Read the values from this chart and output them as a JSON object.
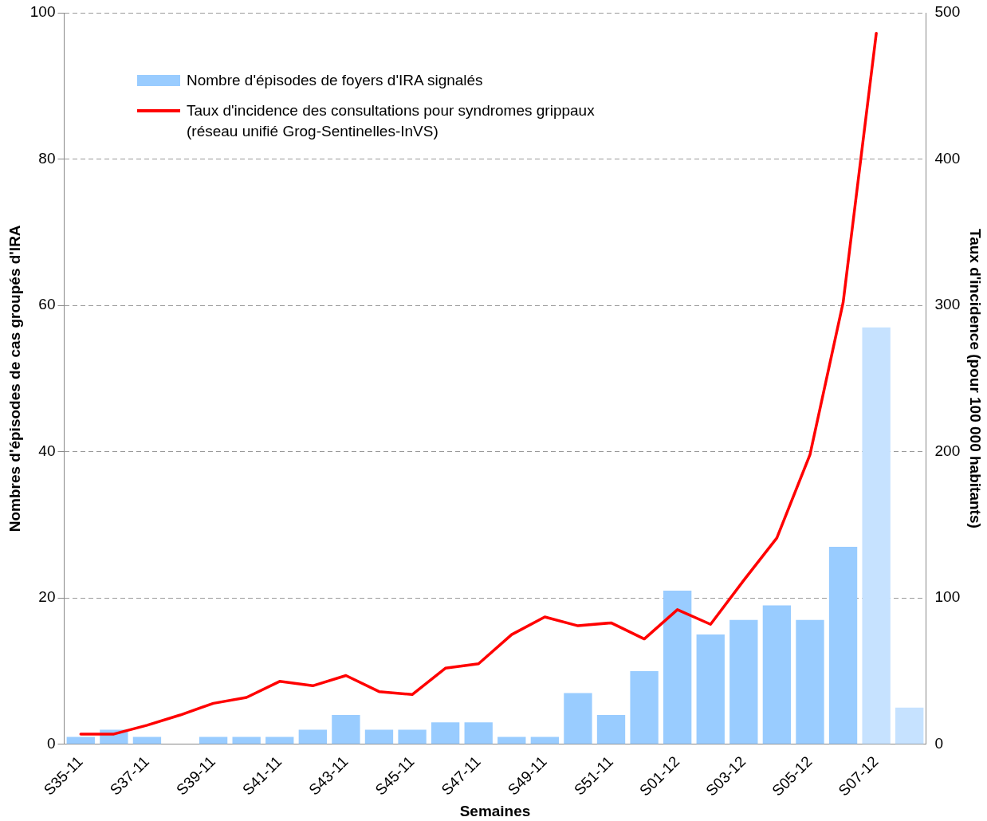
{
  "chart_data": {
    "type": "bar",
    "categories": [
      "S35-11",
      null,
      "S37-11",
      null,
      "S39-11",
      null,
      "S41-11",
      null,
      "S43-11",
      null,
      "S45-11",
      null,
      "S47-11",
      null,
      "S49-11",
      null,
      "S51-11",
      null,
      "S01-12",
      null,
      "S03-12",
      null,
      "S05-12",
      null,
      "S07-12",
      null
    ],
    "xlabel": "Semaines",
    "ylabel": "Nombres d'épisodes de cas groupés d'IRA",
    "y2label": "Taux d'incidence (pour 100 000 habitants)",
    "series": [
      {
        "name": "Nombre d'épisodes de foyers d'IRA signalés",
        "color": "#99ccff",
        "colors": [
          "#99ccff",
          "#99ccff",
          "#99ccff",
          "#99ccff",
          "#99ccff",
          "#99ccff",
          "#99ccff",
          "#99ccff",
          "#99ccff",
          "#99ccff",
          "#99ccff",
          "#99ccff",
          "#99ccff",
          "#99ccff",
          "#99ccff",
          "#99ccff",
          "#99ccff",
          "#99ccff",
          "#99ccff",
          "#99ccff",
          "#99ccff",
          "#99ccff",
          "#99ccff",
          "#99ccff",
          "#c6e2ff",
          "#c6e2ff"
        ],
        "values": [
          1,
          2,
          1,
          0,
          1,
          1,
          1,
          2,
          4,
          2,
          2,
          3,
          3,
          1,
          1,
          7,
          4,
          10,
          21,
          15,
          17,
          19,
          17,
          27,
          57,
          5
        ]
      },
      {
        "name": "Taux d'incidence des consultations pour syndromes grippaux\n(réseau unifié Grog-Sentinelles-InVS)",
        "type": "line",
        "axis": "y2",
        "color": "#ff0000",
        "values": [
          7,
          7,
          13,
          20,
          28,
          32,
          43,
          40,
          47,
          36,
          34,
          52,
          55,
          75,
          87,
          81,
          83,
          72,
          92,
          82,
          112,
          141,
          198,
          302,
          486,
          null
        ]
      }
    ],
    "ylim": [
      0,
      100
    ],
    "yticks": [
      0,
      20,
      40,
      60,
      80,
      100
    ],
    "y2lim": [
      0,
      500
    ],
    "y2ticks": [
      0,
      100,
      200,
      300,
      400,
      500
    ],
    "grid": "y",
    "legend": "top left",
    "marker": "none",
    "line_style": "solid"
  }
}
